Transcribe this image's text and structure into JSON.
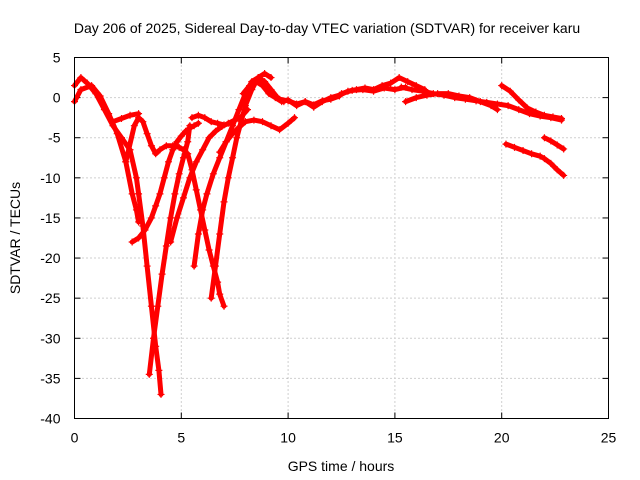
{
  "chart_data": {
    "type": "scatter",
    "title": "Day 206 of 2025, Sidereal Day-to-day VTEC variation (SDTVAR) for receiver karu",
    "xlabel": "GPS time / hours",
    "ylabel": "SDTVAR / TECUs",
    "xlim": [
      0,
      25
    ],
    "ylim": [
      -40,
      5
    ],
    "xticks": [
      0,
      5,
      10,
      15,
      20,
      25
    ],
    "xtick_labels": [
      "0",
      "5",
      "10",
      "15",
      "20",
      "25"
    ],
    "yticks": [
      5,
      0,
      -5,
      -10,
      -15,
      -20,
      -25,
      -30,
      -35,
      -40
    ],
    "ytick_labels": [
      "5",
      "0",
      "-5",
      "-10",
      "-15",
      "-20",
      "-25",
      "-30",
      "-35",
      "-40"
    ],
    "grid": true,
    "marker": "+",
    "color": "#ff0000",
    "series": [
      {
        "name": "track-1",
        "x": [
          0.0,
          0.3,
          0.6,
          1.0,
          1.4,
          1.8,
          2.2,
          2.6,
          2.9,
          3.0,
          3.2,
          3.4,
          3.6,
          3.8,
          3.95,
          4.05
        ],
        "y": [
          1.5,
          2.5,
          1.8,
          0.5,
          -1.5,
          -3.5,
          -5.0,
          -6.5,
          -10.0,
          -12.0,
          -16.0,
          -21.0,
          -26.0,
          -31.0,
          -34.0,
          -37.0
        ]
      },
      {
        "name": "track-2",
        "x": [
          0.0,
          0.3,
          0.8,
          1.2,
          1.6,
          2.0,
          2.4,
          2.7,
          2.9,
          3.0
        ],
        "y": [
          -0.5,
          1.0,
          1.5,
          0.2,
          -2.0,
          -4.5,
          -8.0,
          -12.0,
          -14.0,
          -15.5
        ]
      },
      {
        "name": "track-3",
        "x": [
          1.8,
          2.2,
          2.6,
          3.0
        ],
        "y": [
          -3.0,
          -2.6,
          -2.2,
          -2.0
        ]
      },
      {
        "name": "track-4",
        "x": [
          2.4,
          2.8,
          3.0,
          3.2,
          3.4,
          3.6,
          3.8,
          4.0,
          4.3,
          4.6,
          4.9,
          5.1,
          5.3,
          5.5,
          5.7,
          5.9,
          6.1,
          6.3,
          6.5,
          6.7,
          6.8,
          7.0
        ],
        "y": [
          -8.0,
          -3.5,
          -2.5,
          -3.0,
          -4.5,
          -6.0,
          -7.0,
          -6.5,
          -6.0,
          -6.0,
          -6.2,
          -6.5,
          -7.0,
          -9.0,
          -11.5,
          -14.0,
          -16.5,
          -19.0,
          -21.0,
          -23.0,
          -24.5,
          -26.0
        ]
      },
      {
        "name": "track-5",
        "x": [
          2.7,
          3.0,
          3.3,
          3.6,
          3.8,
          4.0,
          4.2,
          4.4,
          4.6,
          4.8,
          5.0,
          5.2,
          5.4,
          5.6,
          5.8
        ],
        "y": [
          -18.0,
          -17.5,
          -16.5,
          -15.0,
          -13.5,
          -12.0,
          -10.0,
          -8.0,
          -6.5,
          -5.5,
          -4.8,
          -4.2,
          -3.8,
          -3.5,
          -3.2
        ]
      },
      {
        "name": "track-6",
        "x": [
          3.5,
          3.7,
          3.9,
          4.1,
          4.3,
          4.5,
          4.7,
          4.9,
          5.1,
          5.3,
          5.4
        ],
        "y": [
          -34.5,
          -30.0,
          -26.0,
          -22.0,
          -18.5,
          -15.0,
          -12.0,
          -9.5,
          -7.5,
          -5.5,
          -3.5
        ]
      },
      {
        "name": "track-7",
        "x": [
          4.5,
          4.8,
          5.1,
          5.4,
          5.7,
          6.0,
          6.3,
          6.6,
          6.9,
          7.2,
          7.5,
          7.8,
          8.1
        ],
        "y": [
          -18.0,
          -15.0,
          -12.5,
          -10.0,
          -8.0,
          -6.5,
          -5.0,
          -4.2,
          -3.6,
          -3.2,
          -2.8,
          -2.4,
          -1.5
        ]
      },
      {
        "name": "track-8",
        "x": [
          5.5,
          5.8,
          6.1,
          6.4,
          6.7,
          7.0
        ],
        "y": [
          -2.5,
          -2.2,
          -2.5,
          -3.0,
          -3.2,
          -3.4
        ]
      },
      {
        "name": "track-9",
        "x": [
          5.6,
          5.8,
          6.0,
          6.2,
          6.5,
          6.8,
          7.1,
          7.4,
          7.7,
          8.0,
          8.3,
          8.6,
          8.9,
          9.2,
          9.5,
          9.8
        ],
        "y": [
          -21.0,
          -17.0,
          -14.0,
          -12.0,
          -9.5,
          -7.5,
          -5.5,
          -3.5,
          -1.5,
          0.5,
          2.0,
          2.5,
          2.0,
          1.0,
          0.0,
          -0.5
        ]
      },
      {
        "name": "track-10",
        "x": [
          6.4,
          6.6,
          6.8,
          7.0,
          7.2,
          7.4,
          7.6,
          7.8,
          8.0,
          8.3,
          8.6,
          8.9,
          9.2
        ],
        "y": [
          -25.0,
          -21.0,
          -17.0,
          -13.0,
          -10.0,
          -7.5,
          -5.0,
          -3.0,
          -1.0,
          1.0,
          2.5,
          3.0,
          2.5
        ]
      },
      {
        "name": "track-11",
        "x": [
          6.8,
          7.1,
          7.4,
          7.7,
          8.0,
          8.4,
          8.8,
          9.2,
          9.6,
          10.0,
          10.3
        ],
        "y": [
          -6.8,
          -5.5,
          -4.5,
          -3.7,
          -3.0,
          -2.8,
          -3.0,
          -3.5,
          -4.0,
          -3.2,
          -2.5
        ]
      },
      {
        "name": "track-12",
        "x": [
          7.9,
          8.2,
          8.5,
          8.8,
          9.1,
          9.4,
          9.7,
          10.0,
          10.4,
          10.8,
          11.2,
          11.6,
          12.0,
          12.4,
          12.8,
          13.2,
          13.6,
          14.0,
          14.4,
          14.8,
          15.2,
          15.6,
          16.0,
          16.4
        ],
        "y": [
          0.5,
          1.5,
          2.0,
          1.5,
          0.5,
          0.0,
          -0.5,
          -0.3,
          -1.0,
          -0.5,
          -1.2,
          -0.5,
          0.0,
          0.3,
          0.8,
          1.0,
          1.2,
          1.0,
          1.5,
          1.8,
          2.5,
          2.0,
          1.5,
          1.0
        ]
      },
      {
        "name": "track-13",
        "x": [
          9.6,
          10.0,
          10.4,
          10.8,
          11.2,
          11.6,
          12.0,
          12.4
        ],
        "y": [
          -0.2,
          -0.4,
          -0.8,
          -0.5,
          -0.9,
          -0.4,
          -0.2,
          0.2
        ]
      },
      {
        "name": "track-14",
        "x": [
          12.5,
          13.0,
          13.5,
          14.0,
          14.5,
          15.0,
          15.5
        ],
        "y": [
          0.5,
          0.9,
          1.0,
          0.8,
          1.2,
          1.0,
          1.3
        ]
      },
      {
        "name": "track-15",
        "x": [
          15.3,
          15.8,
          16.3,
          16.8,
          17.3,
          17.8,
          18.3,
          18.8,
          19.3,
          19.8,
          20.3,
          20.8,
          21.3,
          21.8,
          22.3,
          22.8
        ],
        "y": [
          1.3,
          1.0,
          0.8,
          0.5,
          0.3,
          0.0,
          -0.2,
          -0.4,
          -0.6,
          -0.8,
          -1.0,
          -1.5,
          -2.0,
          -2.3,
          -2.5,
          -2.8
        ]
      },
      {
        "name": "track-16",
        "x": [
          15.5,
          16.0,
          16.5,
          17.0,
          17.5,
          18.0,
          18.5,
          19.0,
          19.5,
          19.8
        ],
        "y": [
          -0.5,
          0.0,
          0.3,
          0.5,
          0.5,
          0.2,
          0.0,
          -0.5,
          -1.0,
          -1.5
        ]
      },
      {
        "name": "track-17",
        "x": [
          20.0,
          20.4,
          20.8,
          21.2,
          21.6,
          22.0,
          22.4,
          22.8
        ],
        "y": [
          1.5,
          0.8,
          -0.3,
          -1.3,
          -1.8,
          -2.2,
          -2.4,
          -2.6
        ]
      },
      {
        "name": "track-18",
        "x": [
          20.2,
          20.6,
          21.0,
          21.4,
          21.8,
          22.0,
          22.3,
          22.6,
          22.9
        ],
        "y": [
          -5.8,
          -6.2,
          -6.6,
          -7.0,
          -7.3,
          -7.6,
          -8.2,
          -9.0,
          -9.7
        ]
      },
      {
        "name": "track-19",
        "x": [
          22.0,
          22.3,
          22.6,
          22.9
        ],
        "y": [
          -5.0,
          -5.4,
          -5.9,
          -6.4
        ]
      }
    ]
  }
}
